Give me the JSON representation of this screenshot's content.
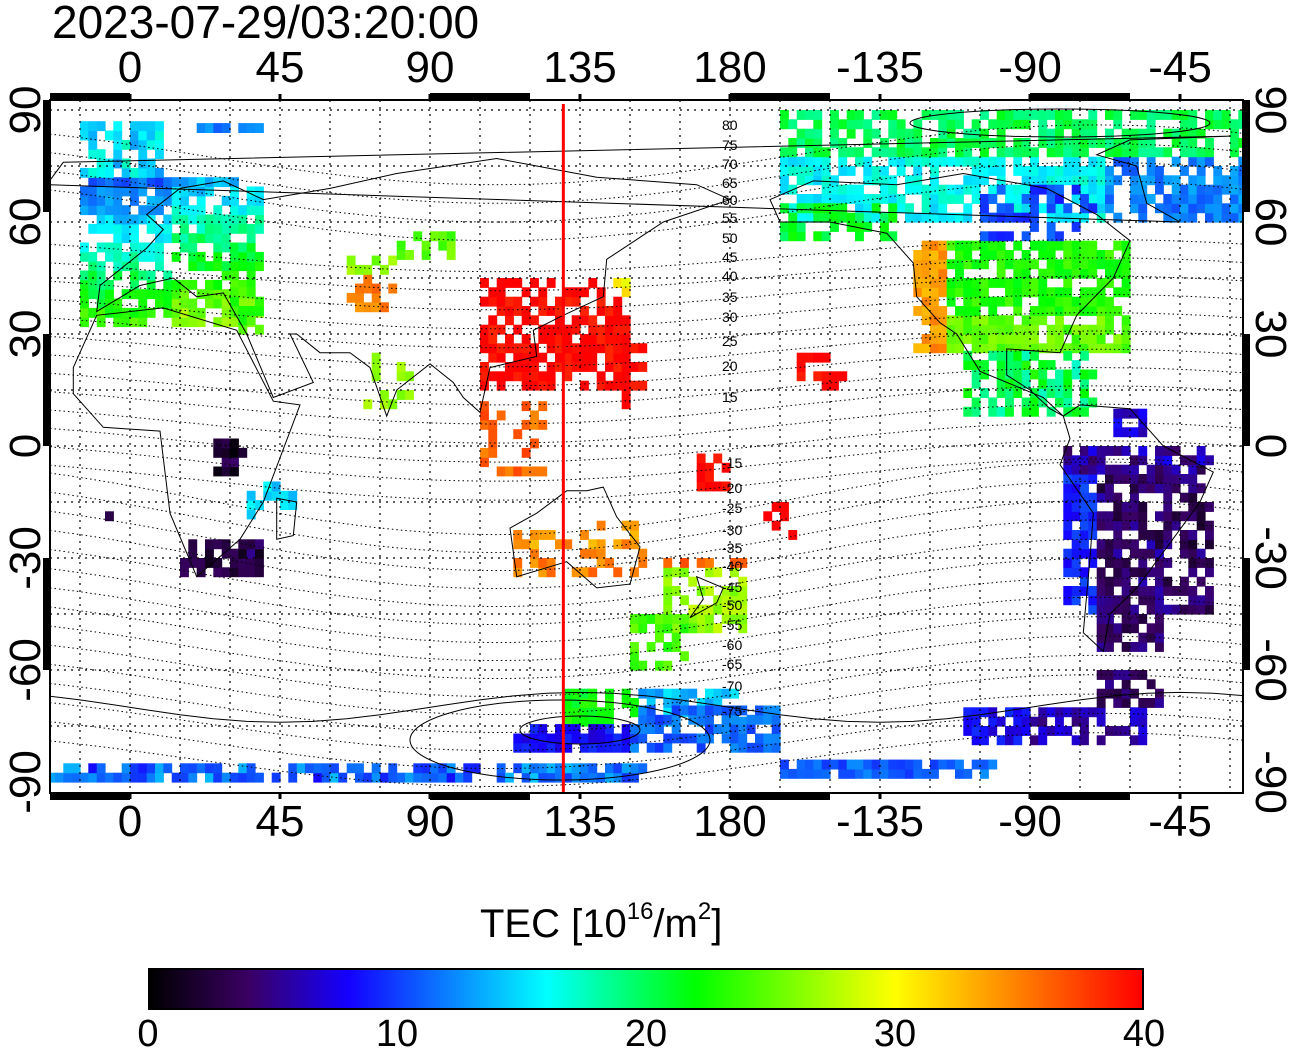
{
  "title": "2023-07-29/03:20:00",
  "axes": {
    "x_ticks_top": [
      "0",
      "45",
      "90",
      "135",
      "180",
      "-135",
      "-90",
      "-45"
    ],
    "x_ticks_bottom": [
      "0",
      "45",
      "90",
      "135",
      "180",
      "-135",
      "-90",
      "-45"
    ],
    "y_ticks_left": [
      "90",
      "60",
      "30",
      "0",
      "-30",
      "-60",
      "-90"
    ],
    "y_ticks_right": [
      "90",
      "60",
      "30",
      "0",
      "-30",
      "-60",
      "-90"
    ]
  },
  "magnetic_latitude_labels": [
    "80",
    "75",
    "70",
    "65",
    "60",
    "55",
    "50",
    "45",
    "40",
    "35",
    "30",
    "25",
    "20",
    "15",
    "-15",
    "-20",
    "-25",
    "-30",
    "-35",
    "-40",
    "-45",
    "-50",
    "-55",
    "-60",
    "-65",
    "-70",
    "-75"
  ],
  "meridian_marker": {
    "longitude": 130,
    "color": "#ff0000"
  },
  "colorbar": {
    "label_main": "TEC  [10",
    "label_exp": "16",
    "label_unit": "/m",
    "label_unit_exp": "2",
    "label_close": "]",
    "ticks": [
      "0",
      "10",
      "20",
      "30",
      "40"
    ],
    "range": [
      0,
      40
    ],
    "colors": [
      "#000000",
      "#3a0064",
      "#1400ff",
      "#00ffff",
      "#00ff00",
      "#ffff00",
      "#ff8000",
      "#ff0000"
    ]
  }
}
